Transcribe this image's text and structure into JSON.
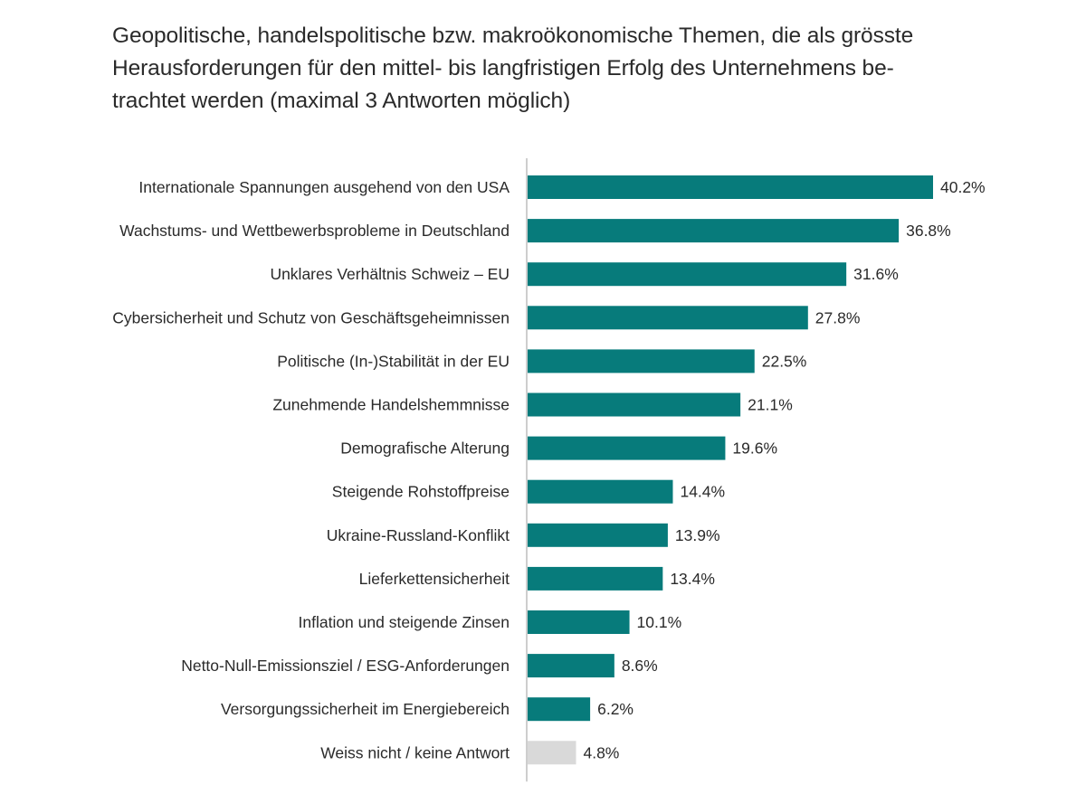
{
  "title_lines": [
    "Geopolitische, handelspolitische bzw. makroökonomische Themen, die als grösste",
    "Herausforderungen für den mittel- bis langfristigen Erfolg des Unternehmens be-",
    "trachtet werden (maximal 3 Antworten möglich)"
  ],
  "colors": {
    "bar": "#077b7b",
    "bar_muted": "#d9d9d9",
    "axis": "#bdbdbd"
  },
  "chart_data": {
    "type": "bar",
    "orientation": "horizontal",
    "title": "Geopolitische, handelspolitische bzw. makroökonomische Themen, die als grösste Herausforderungen für den mittel- bis langfristigen Erfolg des Unternehmens betrachtet werden (maximal 3 Antworten möglich)",
    "xlabel": "",
    "ylabel": "",
    "unit": "%",
    "xlim": [
      0,
      40.2
    ],
    "grid": false,
    "categories": [
      "Internationale Spannungen ausgehend von den USA",
      "Wachstums- und Wettbewerbsprobleme in Deutschland",
      "Unklares Verhältnis Schweiz – EU",
      "Cybersicherheit und Schutz von Geschäftsgeheimnissen",
      "Politische (In-)Stabilität in der EU",
      "Zunehmende Handelshemmnisse",
      "Demografische Alterung",
      "Steigende Rohstoffpreise",
      "Ukraine-Russland-Konflikt",
      "Lieferkettensicherheit",
      "Inflation und steigende Zinsen",
      "Netto-Null-Emissionsziel / ESG-Anforderungen",
      "Versorgungssicherheit im Energiebereich",
      "Weiss nicht / keine Antwort"
    ],
    "values": [
      40.2,
      36.8,
      31.6,
      27.8,
      22.5,
      21.1,
      19.6,
      14.4,
      13.9,
      13.4,
      10.1,
      8.6,
      6.2,
      4.8
    ],
    "value_labels": [
      "40.2%",
      "36.8%",
      "31.6%",
      "27.8%",
      "22.5%",
      "21.1%",
      "19.6%",
      "14.4%",
      "13.9%",
      "13.4%",
      "10.1%",
      "8.6%",
      "6.2%",
      "4.8%"
    ],
    "muted_categories": [
      "Weiss nicht / keine Antwort"
    ]
  }
}
